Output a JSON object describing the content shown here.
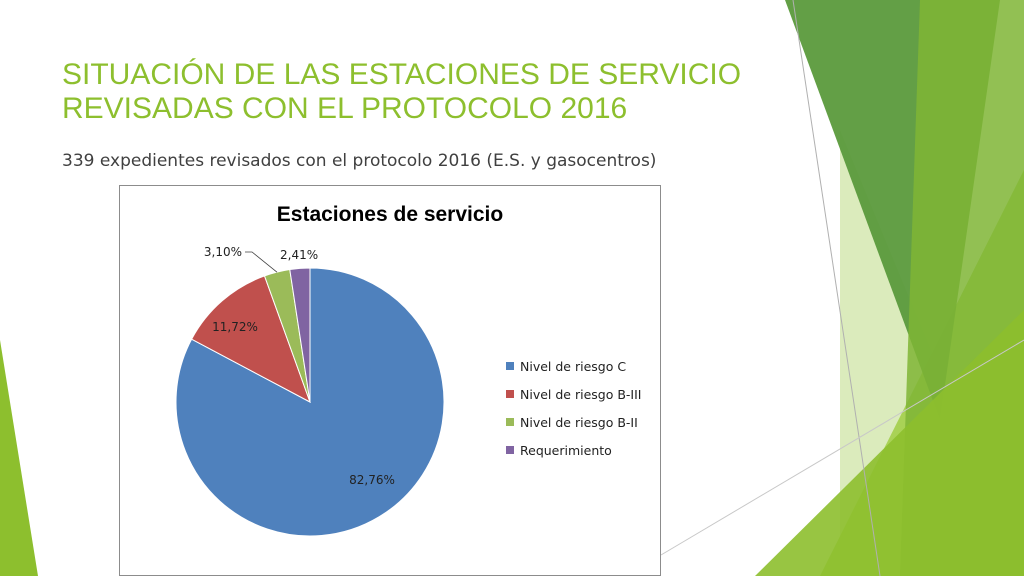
{
  "slide": {
    "title": "SITUACIÓN DE LAS ESTACIONES DE SERVICIO REVISADAS CON EL PROTOCOLO 2016",
    "subtitle": "339 expedientes revisados con el protocolo 2016 (E.S. y gasocentros)"
  },
  "colors": {
    "title": "#8dbf2e",
    "deco_dark": "#5b9a3c",
    "deco_mid": "#7fb535",
    "deco_light": "#a3cf4a",
    "deco_pale": "#d5e8b0"
  },
  "chart_data": {
    "type": "pie",
    "title": "Estaciones de servicio",
    "legend_position": "right",
    "series": [
      {
        "name": "Nivel de riesgo C",
        "value": 82.76,
        "label": "82,76%",
        "color": "#4f81bd"
      },
      {
        "name": "Nivel de riesgo B-III",
        "value": 11.72,
        "label": "11,72%",
        "color": "#c0504d"
      },
      {
        "name": "Nivel de riesgo B-II",
        "value": 3.1,
        "label": "3,10%",
        "color": "#9bbb59"
      },
      {
        "name": "Requerimiento",
        "value": 2.41,
        "label": "2,41%",
        "color": "#8064a2"
      }
    ]
  }
}
